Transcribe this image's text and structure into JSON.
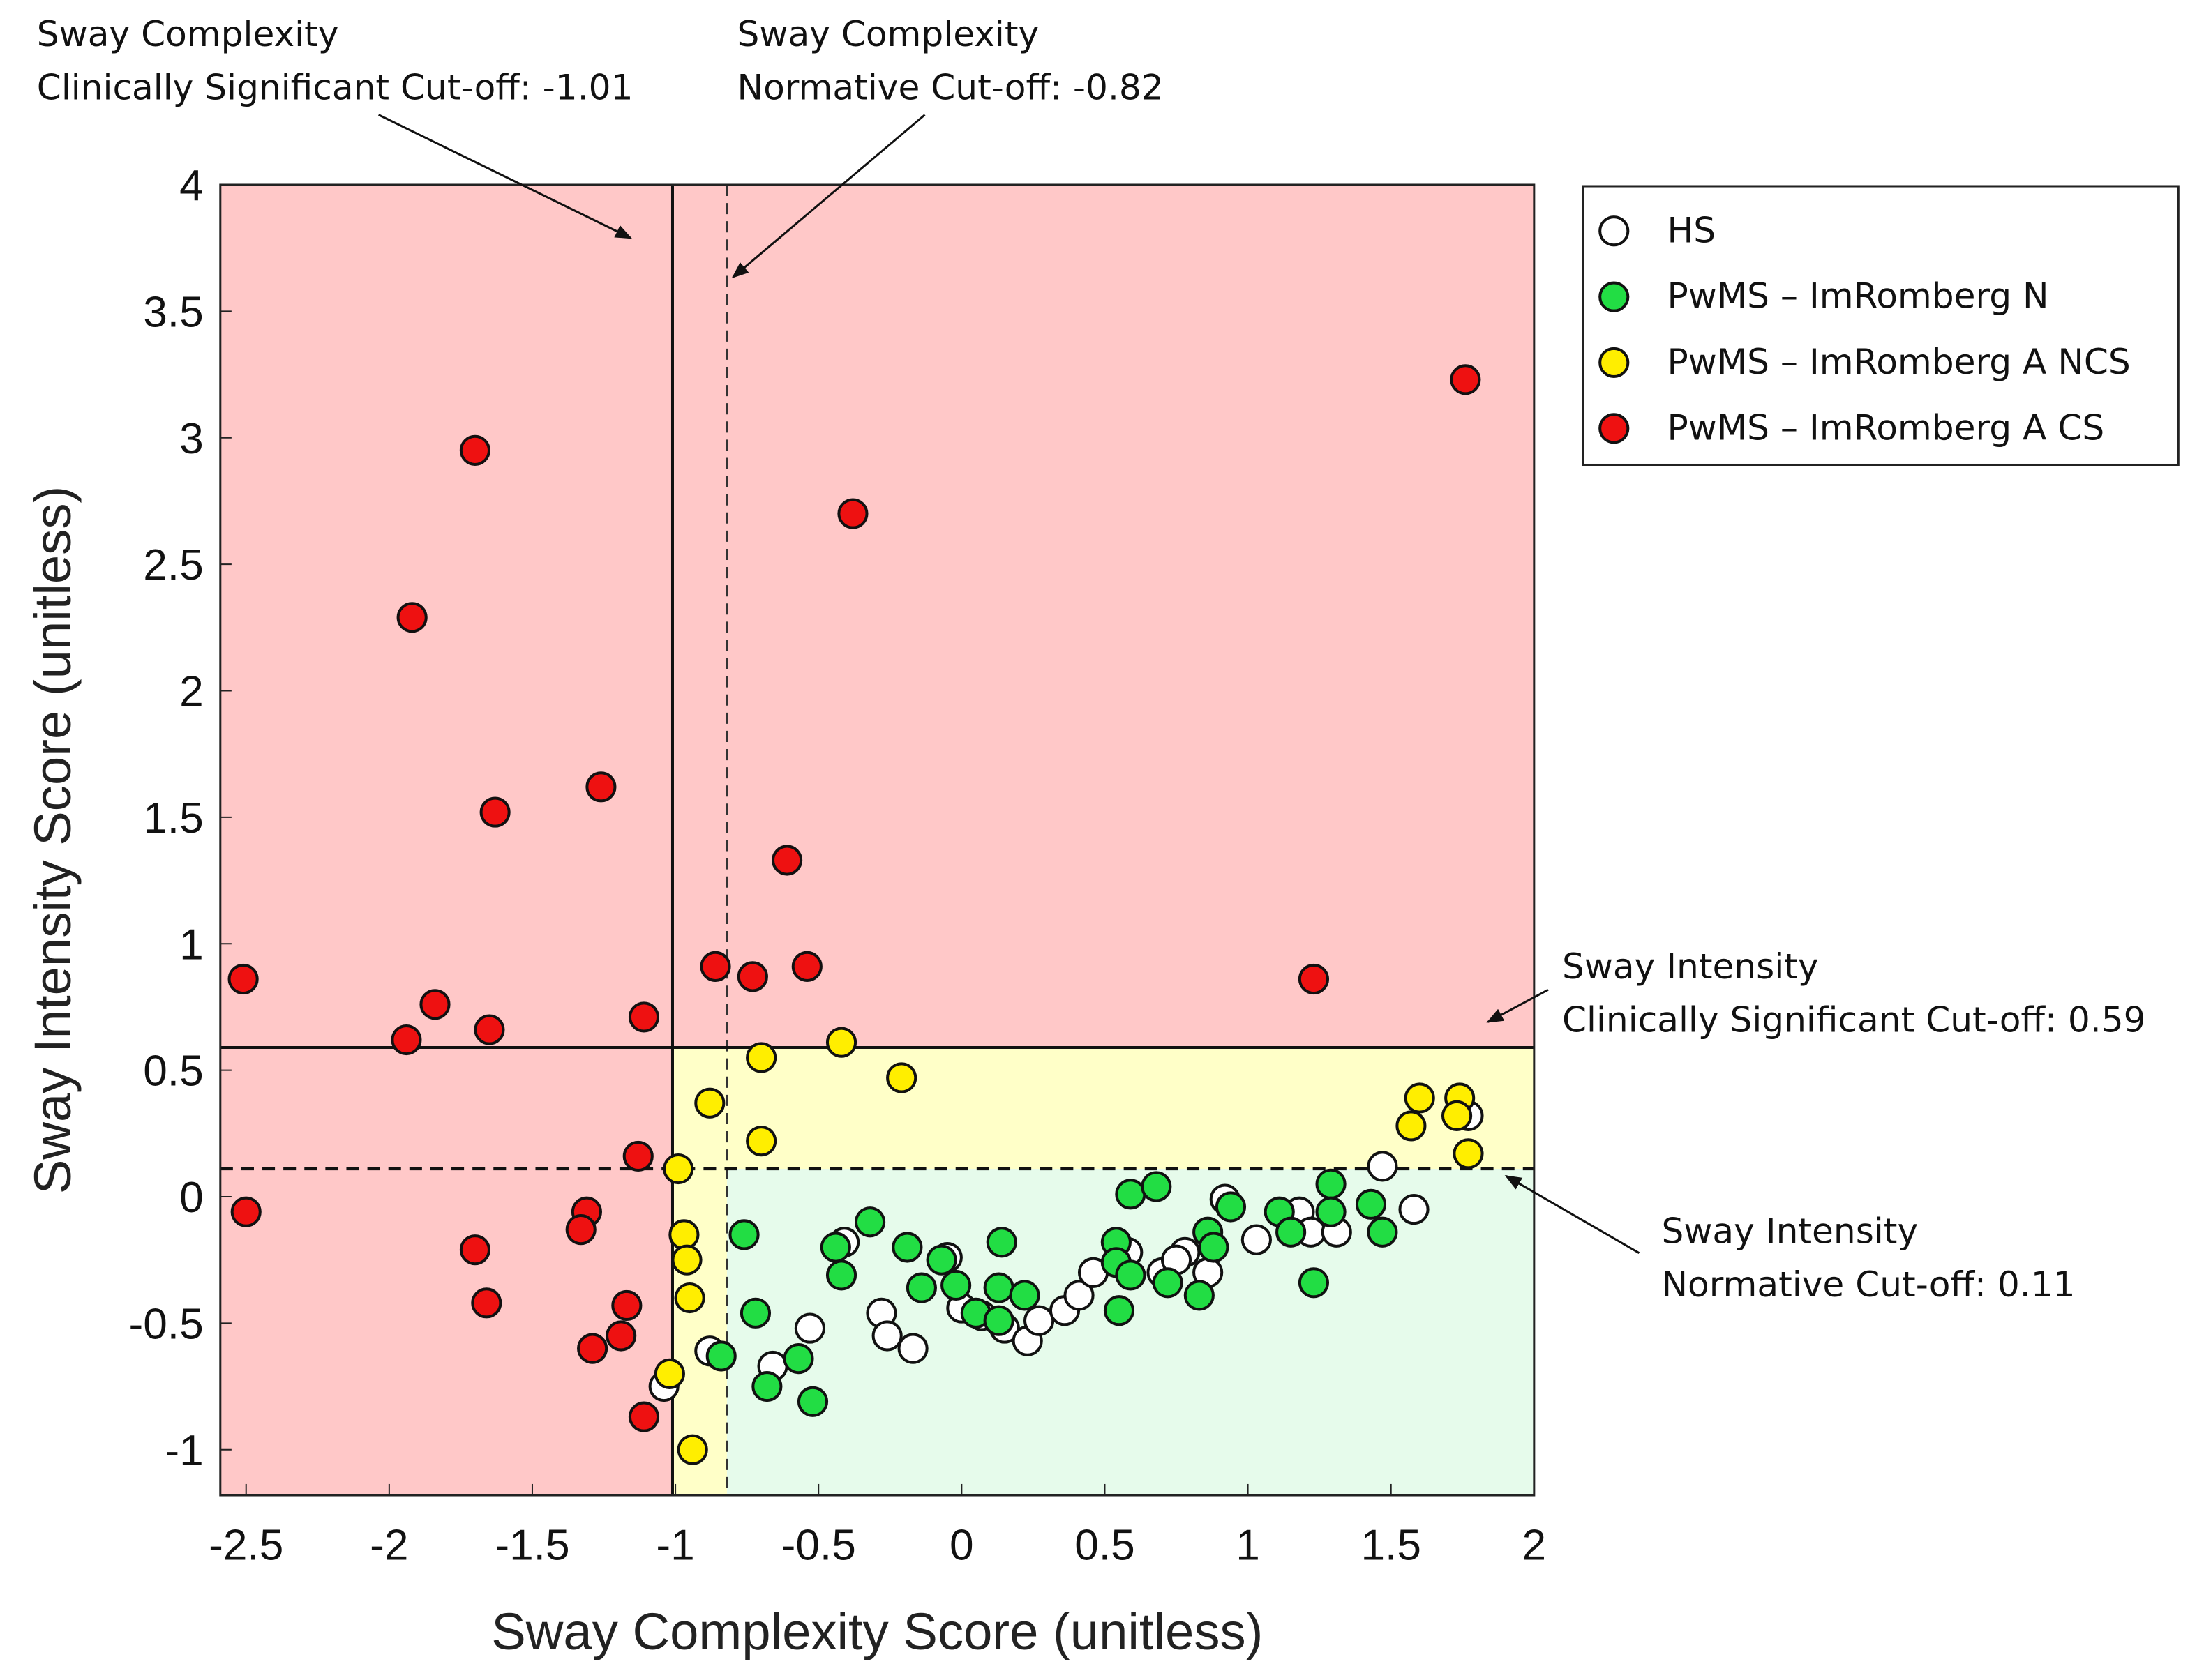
{
  "chart_data": {
    "type": "scatter",
    "xlabel": "Sway  Complexity Score (unitless)",
    "ylabel": "Sway  Intensity Score (unitless)",
    "xlim": [
      -2.59,
      2
    ],
    "ylim": [
      -1.18,
      4
    ],
    "xticks": [
      -2.5,
      -2,
      -1.5,
      -1,
      -0.5,
      0,
      0.5,
      1,
      1.5,
      2
    ],
    "yticks": [
      -1,
      -0.5,
      0,
      0.5,
      1,
      1.5,
      2,
      2.5,
      3,
      3.5,
      4
    ],
    "xtick_labels": [
      "-2.5",
      "-2",
      "-1.5",
      "-1",
      "-0.5",
      "0",
      "0.5",
      "1",
      "1.5",
      "2"
    ],
    "ytick_labels": [
      "-1",
      "-0.5",
      "0",
      "0.5",
      "1",
      "1.5",
      "2",
      "2.5",
      "3",
      "3.5",
      "4"
    ],
    "cutoffs": {
      "complexity_cs": -1.01,
      "complexity_norm": -0.82,
      "intensity_cs": 0.59,
      "intensity_norm": 0.11
    },
    "region_colors": {
      "clinical": "#ffc8c8",
      "ncs": "#ffffc8",
      "normal": "#e6fbeb"
    },
    "annotations": [
      {
        "line1": "Sway Complexity",
        "line2": "Clinically Significant Cut-off: -1.01"
      },
      {
        "line1": "Sway Complexity",
        "line2": "Normative Cut-off: -0.82"
      },
      {
        "line1": "Sway Intensity",
        "line2": "Clinically Significant Cut-off: 0.59"
      },
      {
        "line1": "Sway Intensity",
        "line2": "Normative Cut-off: 0.11"
      }
    ],
    "legend_position": "outside-top-right",
    "series": [
      {
        "name": "HS",
        "color": "#ffffff",
        "points": [
          [
            -1.04,
            -0.75
          ],
          [
            -0.88,
            -0.61
          ],
          [
            -0.53,
            -0.52
          ],
          [
            -0.66,
            -0.67
          ],
          [
            -0.41,
            -0.18
          ],
          [
            -0.28,
            -0.46
          ],
          [
            -0.26,
            -0.55
          ],
          [
            -0.17,
            -0.6
          ],
          [
            -0.05,
            -0.24
          ],
          [
            0.0,
            -0.44
          ],
          [
            0.07,
            -0.47
          ],
          [
            0.15,
            -0.52
          ],
          [
            0.23,
            -0.57
          ],
          [
            0.27,
            -0.49
          ],
          [
            0.36,
            -0.45
          ],
          [
            0.41,
            -0.39
          ],
          [
            0.46,
            -0.3
          ],
          [
            0.58,
            -0.22
          ],
          [
            0.7,
            -0.3
          ],
          [
            0.78,
            -0.22
          ],
          [
            0.86,
            -0.3
          ],
          [
            0.92,
            -0.01
          ],
          [
            1.03,
            -0.17
          ],
          [
            1.18,
            -0.06
          ],
          [
            1.22,
            -0.14
          ],
          [
            1.31,
            -0.14
          ],
          [
            1.47,
            0.12
          ],
          [
            1.58,
            -0.05
          ],
          [
            1.77,
            0.32
          ],
          [
            0.75,
            -0.25
          ]
        ]
      },
      {
        "name": "PwMS – ImRomberg N",
        "color": "#22dd44",
        "points": [
          [
            -0.76,
            -0.15
          ],
          [
            -0.72,
            -0.46
          ],
          [
            -0.84,
            -0.63
          ],
          [
            -0.68,
            -0.75
          ],
          [
            -0.57,
            -0.64
          ],
          [
            -0.52,
            -0.81
          ],
          [
            -0.44,
            -0.2
          ],
          [
            -0.42,
            -0.31
          ],
          [
            -0.32,
            -0.1
          ],
          [
            -0.19,
            -0.2
          ],
          [
            -0.14,
            -0.36
          ],
          [
            -0.07,
            -0.25
          ],
          [
            -0.02,
            -0.35
          ],
          [
            0.05,
            -0.46
          ],
          [
            0.13,
            -0.49
          ],
          [
            0.13,
            -0.36
          ],
          [
            0.14,
            -0.18
          ],
          [
            0.22,
            -0.39
          ],
          [
            0.54,
            -0.18
          ],
          [
            0.54,
            -0.26
          ],
          [
            0.55,
            -0.45
          ],
          [
            0.59,
            -0.31
          ],
          [
            0.59,
            0.01
          ],
          [
            0.68,
            0.04
          ],
          [
            0.72,
            -0.34
          ],
          [
            0.83,
            -0.39
          ],
          [
            0.86,
            -0.14
          ],
          [
            0.88,
            -0.2
          ],
          [
            0.94,
            -0.04
          ],
          [
            1.11,
            -0.06
          ],
          [
            1.15,
            -0.14
          ],
          [
            1.23,
            -0.34
          ],
          [
            1.29,
            0.05
          ],
          [
            1.29,
            -0.06
          ],
          [
            1.43,
            -0.03
          ],
          [
            1.47,
            -0.14
          ]
        ]
      },
      {
        "name": "PwMS – ImRomberg A NCS",
        "color": "#ffee00",
        "points": [
          [
            -0.7,
            0.55
          ],
          [
            -0.42,
            0.61
          ],
          [
            -0.21,
            0.47
          ],
          [
            -0.88,
            0.37
          ],
          [
            -0.7,
            0.22
          ],
          [
            -0.99,
            0.11
          ],
          [
            -0.97,
            -0.15
          ],
          [
            -0.96,
            -0.25
          ],
          [
            -0.95,
            -0.4
          ],
          [
            -1.02,
            -0.7
          ],
          [
            -0.94,
            -1.0
          ],
          [
            1.6,
            0.39
          ],
          [
            1.57,
            0.28
          ],
          [
            1.74,
            0.39
          ],
          [
            1.73,
            0.32
          ],
          [
            1.77,
            0.17
          ]
        ]
      },
      {
        "name": "PwMS – ImRomberg A CS",
        "color": "#ee1111",
        "points": [
          [
            -2.51,
            0.86
          ],
          [
            -2.5,
            -0.06
          ],
          [
            -1.7,
            2.95
          ],
          [
            -1.92,
            2.29
          ],
          [
            -1.63,
            1.52
          ],
          [
            -1.26,
            1.62
          ],
          [
            -1.84,
            0.76
          ],
          [
            -1.94,
            0.62
          ],
          [
            -1.65,
            0.66
          ],
          [
            -1.11,
            0.71
          ],
          [
            -1.13,
            0.16
          ],
          [
            -1.7,
            -0.21
          ],
          [
            -1.31,
            -0.06
          ],
          [
            -1.33,
            -0.13
          ],
          [
            -1.66,
            -0.42
          ],
          [
            -1.17,
            -0.43
          ],
          [
            -1.19,
            -0.55
          ],
          [
            -1.29,
            -0.6
          ],
          [
            -1.11,
            -0.87
          ],
          [
            -0.38,
            2.7
          ],
          [
            -0.61,
            1.33
          ],
          [
            -0.86,
            0.91
          ],
          [
            -0.73,
            0.87
          ],
          [
            -0.54,
            0.91
          ],
          [
            1.76,
            3.23
          ],
          [
            1.23,
            0.86
          ]
        ]
      }
    ]
  }
}
